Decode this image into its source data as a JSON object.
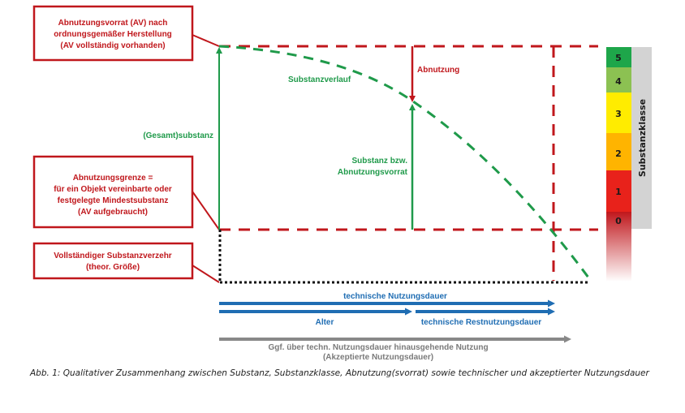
{
  "boxes": {
    "av_full": [
      "Abnutzungsvorrat (AV) nach",
      "ordnungsgemäßer Herstellung",
      "(AV vollständig vorhanden)"
    ],
    "limit": [
      "Abnutzungsgrenze =",
      "für ein Objekt vereinbarte oder",
      "festgelegte Mindestsubstanz",
      "(AV aufgebraucht)"
    ],
    "complete": [
      "Vollständiger Substanzverzehr",
      "(theor. Größe)"
    ]
  },
  "labels": {
    "total_substance": "(Gesamt)substanz",
    "substance_curve": "Substanzverlauf",
    "wear": "Abnutzung",
    "substance_reserve": [
      "Substanz bzw.",
      "Abnutzungsvorrat"
    ]
  },
  "timeline": {
    "technical_life": "technische Nutzungsdauer",
    "age": "Alter",
    "remaining_life": "technische Restnutzungsdauer",
    "extended_use": [
      "Ggf. über techn. Nutzungsdauer hinausgehende Nutzung",
      "(Akzeptierte Nutzungsdauer)"
    ]
  },
  "scale": {
    "title": "Substanzklasse",
    "classes": [
      {
        "label": "5",
        "color": "#1ea64a"
      },
      {
        "label": "4",
        "color": "#8cc152"
      },
      {
        "label": "3",
        "color": "#ffec00"
      },
      {
        "label": "2",
        "color": "#ffb400"
      },
      {
        "label": "1",
        "color": "#e8221b"
      },
      {
        "label": "0",
        "color": "#c0171c"
      }
    ]
  },
  "caption": "Abb. 1: Qualitativer Zusammenhang zwischen Substanz, Substanzklasse, Abnutzung(svorrat) sowie technischer und akzeptierter Nutzungsdauer"
}
